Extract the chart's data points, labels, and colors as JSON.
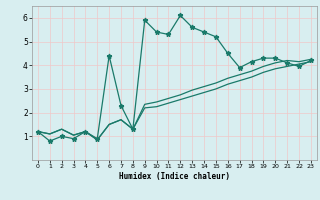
{
  "title": "",
  "xlabel": "Humidex (Indice chaleur)",
  "bg_color": "#d8eef0",
  "grid_color": "#f0c8c8",
  "line_color": "#1a7a6a",
  "xlim": [
    -0.5,
    23.5
  ],
  "ylim": [
    0,
    6.5
  ],
  "xticks": [
    0,
    1,
    2,
    3,
    4,
    5,
    6,
    7,
    8,
    9,
    10,
    11,
    12,
    13,
    14,
    15,
    16,
    17,
    18,
    19,
    20,
    21,
    22,
    23
  ],
  "yticks": [
    1,
    2,
    3,
    4,
    5,
    6
  ],
  "line1_x": [
    0,
    1,
    2,
    3,
    4,
    5,
    6,
    7,
    8,
    9,
    10,
    11,
    12,
    13,
    14,
    15,
    16,
    17,
    18,
    19,
    20,
    21,
    22,
    23
  ],
  "line1_y": [
    1.2,
    0.8,
    1.0,
    0.9,
    1.2,
    0.9,
    4.4,
    2.3,
    1.3,
    5.9,
    5.4,
    5.3,
    6.1,
    5.6,
    5.4,
    5.2,
    4.5,
    3.9,
    4.15,
    4.3,
    4.3,
    4.1,
    3.95,
    4.2
  ],
  "line2_x": [
    0,
    1,
    2,
    3,
    4,
    5,
    6,
    7,
    8,
    9,
    10,
    11,
    12,
    13,
    14,
    15,
    16,
    17,
    18,
    19,
    20,
    21,
    22,
    23
  ],
  "line2_y": [
    1.2,
    1.1,
    1.3,
    1.05,
    1.2,
    0.85,
    1.5,
    1.7,
    1.3,
    2.2,
    2.25,
    2.4,
    2.55,
    2.7,
    2.85,
    3.0,
    3.2,
    3.35,
    3.5,
    3.7,
    3.85,
    3.95,
    4.05,
    4.15
  ],
  "line3_x": [
    0,
    1,
    2,
    3,
    4,
    5,
    6,
    7,
    8,
    9,
    10,
    11,
    12,
    13,
    14,
    15,
    16,
    17,
    18,
    19,
    20,
    21,
    22,
    23
  ],
  "line3_y": [
    1.2,
    1.1,
    1.3,
    1.05,
    1.2,
    0.85,
    1.5,
    1.7,
    1.3,
    2.35,
    2.45,
    2.6,
    2.75,
    2.95,
    3.1,
    3.25,
    3.45,
    3.6,
    3.75,
    3.95,
    4.1,
    4.2,
    4.15,
    4.25
  ]
}
